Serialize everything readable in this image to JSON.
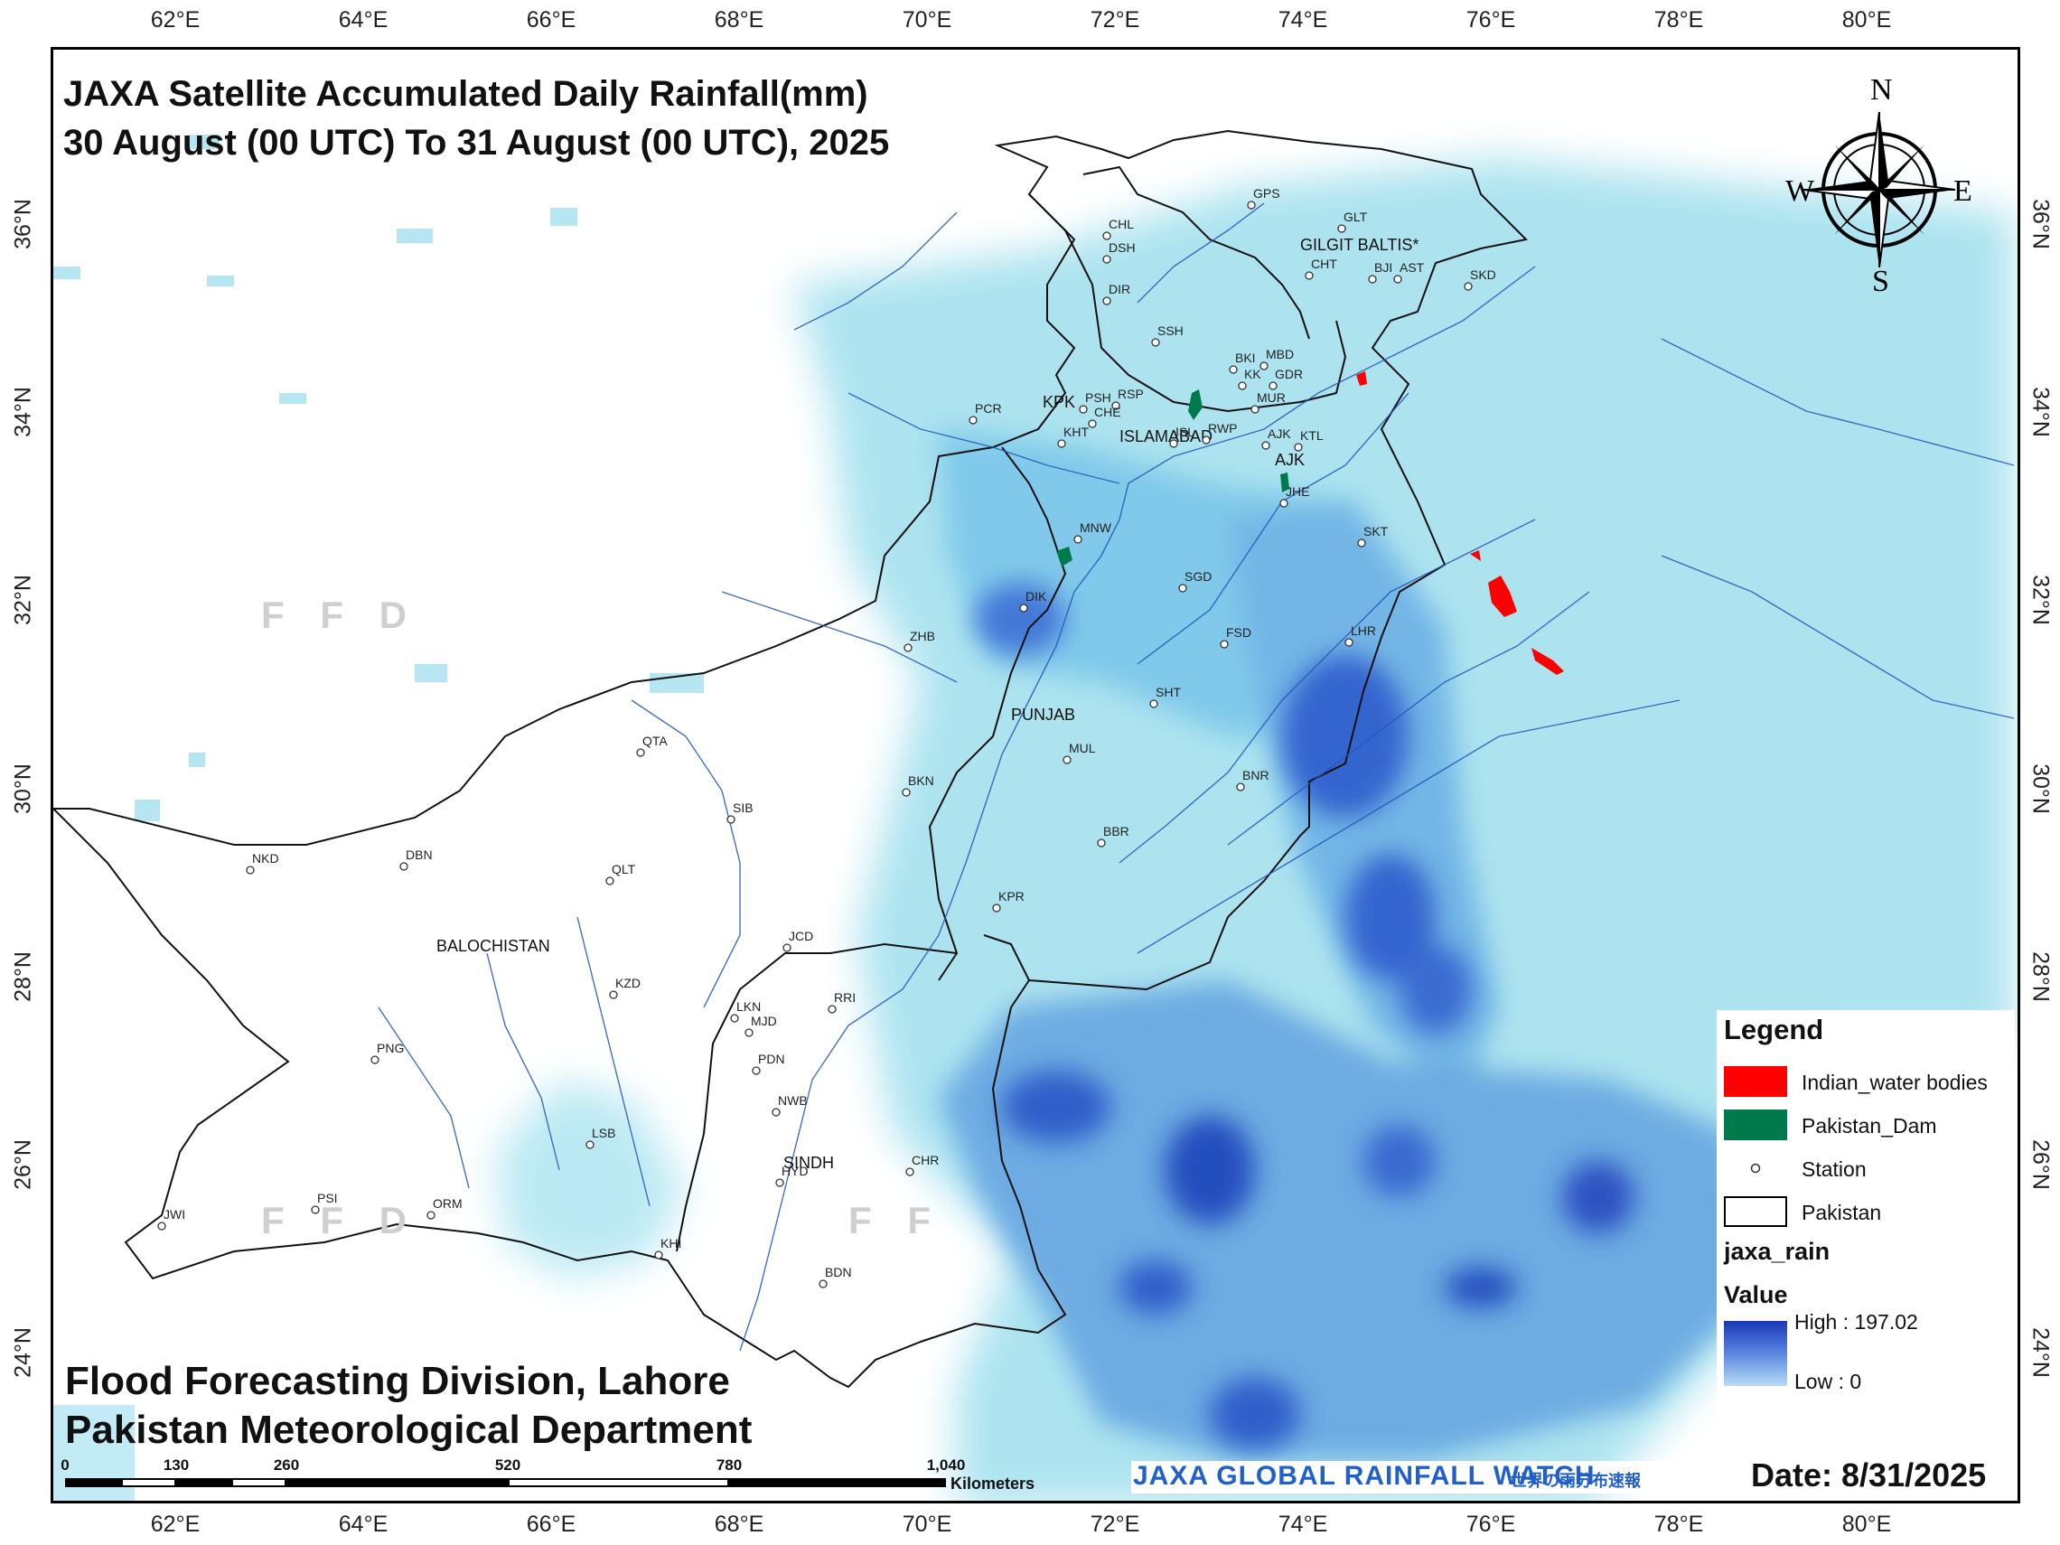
{
  "map": {
    "title_line1": "JAXA Satellite Accumulated Daily Rainfall(mm)",
    "title_line2": "30 August  (00 UTC) To 31 August (00 UTC), 2025",
    "footer_line1": "Flood Forecasting Division, Lahore",
    "footer_line2": "Pakistan Meteorological Department",
    "date_label": "Date: 8/31/2025",
    "banner": {
      "text": "JAXA GLOBAL RAINFALL WATCH",
      "jp": "世界の雨分布速報"
    },
    "watermark": "F F D",
    "watermark2": "F F",
    "longitude_ticks": [
      "62°E",
      "64°E",
      "66°E",
      "68°E",
      "70°E",
      "72°E",
      "74°E",
      "76°E",
      "78°E",
      "80°E"
    ],
    "latitude_ticks_left": [
      "36°N",
      "34°N",
      "32°N",
      "30°N",
      "28°N",
      "26°N",
      "24°N"
    ],
    "latitude_ticks_right": [
      "36°N",
      "34°N",
      "32°N",
      "30°N",
      "28°N",
      "26°N",
      "24°N"
    ],
    "regions": [
      "GILGIT BALTIS*",
      "KPK",
      "ISLAMABAD",
      "AJK",
      "PUNJAB",
      "BALOCHISTAN",
      "SINDH"
    ],
    "stations": [
      "GPS",
      "GLT",
      "CHL",
      "DSH",
      "CHT",
      "BJI",
      "AST",
      "SKD",
      "DIR",
      "SSH",
      "BKI",
      "MBD",
      "KK",
      "GDR",
      "PSH",
      "RSP",
      "MUR",
      "PCR",
      "CHE",
      "KHT",
      "ISL",
      "RWP",
      "AJK",
      "JHE",
      "KTL",
      "MNW",
      "SKT",
      "SGD",
      "DIK",
      "FSD",
      "LHR",
      "ZHB",
      "SHT",
      "QTA",
      "MUL",
      "BKN",
      "BNR",
      "SIB",
      "BBR",
      "NKD",
      "DBN",
      "QLT",
      "KPR",
      "JCD",
      "KZD",
      "RRI",
      "LKN",
      "MJD",
      "PDN",
      "PNG",
      "NWB",
      "LSB",
      "HYD",
      "CHR",
      "PSI",
      "JWI",
      "ORM",
      "KHI",
      "BDN"
    ],
    "compass": {
      "N": "N",
      "S": "S",
      "E": "E",
      "W": "W"
    }
  },
  "legend": {
    "title": "Legend",
    "items": [
      {
        "label": "Indian_water bodies",
        "color": "#ff0000"
      },
      {
        "label": "Pakistan_Dam",
        "color": "#007a4d"
      },
      {
        "label": "Station",
        "symbol": "circle"
      },
      {
        "label": "Pakistan",
        "color": "#ffffff"
      }
    ],
    "raster_name": "jaxa_rain",
    "value_label": "Value",
    "high_label": "High : 197.02",
    "low_label": "Low : 0",
    "ramp_colors": [
      "#1b38b8",
      "#5a86e0",
      "#b9dcf5"
    ]
  },
  "scale_bar": {
    "ticks": [
      "0",
      "130",
      "260",
      "520",
      "780",
      "1,040"
    ],
    "unit": "Kilometers"
  },
  "raster": {
    "high": 197.02,
    "low": 0
  }
}
